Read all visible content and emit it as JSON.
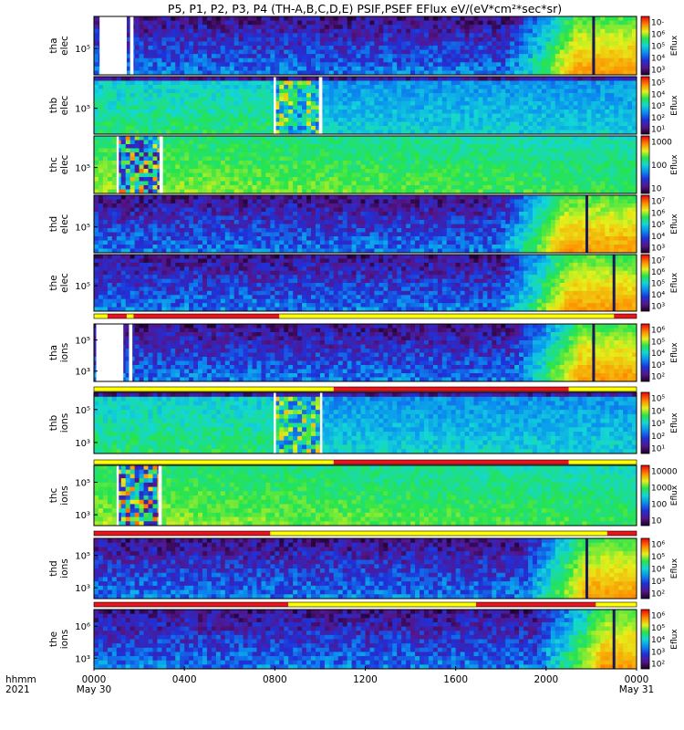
{
  "chart_data": {
    "type": "heatmap",
    "title": "P5, P1, P2, P3, P4 (TH-A,B,C,D,E) PSIF,PSEF EFlux eV/(eV*cm²*sec*sr)",
    "x_axis": {
      "row_label": "hhmm",
      "year_label": "2021",
      "ticks": [
        "0000",
        "0400",
        "0800",
        "1200",
        "1600",
        "2000",
        "0000"
      ],
      "tick_hours": [
        0,
        4,
        8,
        12,
        16,
        20,
        24
      ],
      "date_labels": [
        "May 30",
        "May 31"
      ],
      "range_hours": [
        0,
        24
      ]
    },
    "colorscale": "rainbow (black-purple-blue-cyan-green-yellow-orange-red)",
    "panels": [
      {
        "id": "tha-elec",
        "label": [
          "tha",
          "elec"
        ],
        "yticks": [
          "10⁵"
        ],
        "cbar_ticks": [
          "10·",
          "10⁶",
          "10⁵",
          "10⁴",
          "10³"
        ],
        "cbar_label": "Eflux",
        "data_gaps_hours": [
          [
            0.25,
            1.45
          ],
          [
            1.6,
            1.75
          ]
        ],
        "hot_region_hours": [
          18.3,
          24
        ],
        "spike_hours": [
          22.1
        ]
      },
      {
        "id": "thb-elec",
        "label": [
          "thb",
          "elec"
        ],
        "yticks": [
          "10⁵"
        ],
        "cbar_ticks": [
          "10⁵",
          "10⁴",
          "10³",
          "10²",
          "10¹"
        ],
        "cbar_label": "Eflux",
        "data_gaps_hours": [
          [
            7.95,
            8.05
          ],
          [
            9.95,
            10.1
          ]
        ],
        "hot_region_hours": null,
        "spike_hours": []
      },
      {
        "id": "thc-elec",
        "label": [
          "thc",
          "elec"
        ],
        "yticks": [
          "10⁵"
        ],
        "cbar_ticks": [
          "1000",
          "100",
          "10"
        ],
        "cbar_label": "Eflux",
        "data_gaps_hours": [
          [
            1.0,
            1.1
          ],
          [
            2.9,
            3.05
          ]
        ],
        "hot_region_hours": null,
        "spike_hours": []
      },
      {
        "id": "thd-elec",
        "label": [
          "thd",
          "elec"
        ],
        "yticks": [
          "10⁵"
        ],
        "cbar_ticks": [
          "10⁷",
          "10⁶",
          "10⁵",
          "10⁴",
          "10³"
        ],
        "cbar_label": "Eflux",
        "data_gaps_hours": [],
        "hot_region_hours": [
          17.8,
          24
        ],
        "spike_hours": [
          21.8
        ]
      },
      {
        "id": "the-elec",
        "label": [
          "the",
          "elec"
        ],
        "yticks": [
          "10⁵"
        ],
        "cbar_ticks": [
          "10⁷",
          "10⁶",
          "10⁵",
          "10⁴",
          "10³"
        ],
        "cbar_label": "Eflux",
        "data_gaps_hours": [],
        "hot_region_hours": [
          18.0,
          24
        ],
        "spike_hours": [
          23.0
        ]
      },
      {
        "id": "tha-ions",
        "label": [
          "tha",
          "ions"
        ],
        "yticks": [
          "10⁵",
          "10³"
        ],
        "cbar_ticks": [
          "10⁶",
          "10⁵",
          "10⁴",
          "10³",
          "10²"
        ],
        "cbar_label": "Eflux",
        "data_gaps_hours": [
          [
            0.1,
            1.3
          ],
          [
            1.55,
            1.7
          ]
        ],
        "hot_region_hours": [
          18.5,
          24
        ],
        "spike_hours": [
          22.1
        ]
      },
      {
        "id": "thb-ions",
        "label": [
          "thb",
          "ions"
        ],
        "yticks": [
          "10⁵",
          "10³"
        ],
        "cbar_ticks": [
          "10⁵",
          "10⁴",
          "10³",
          "10²",
          "10¹"
        ],
        "cbar_label": "Eflux",
        "data_gaps_hours": [
          [
            7.95,
            8.05
          ],
          [
            10.0,
            10.1
          ]
        ],
        "hot_region_hours": null,
        "spike_hours": []
      },
      {
        "id": "thc-ions",
        "label": [
          "thc",
          "ions"
        ],
        "yticks": [
          "10⁵",
          "10³"
        ],
        "cbar_ticks": [
          "10000",
          "1000",
          "100",
          "10"
        ],
        "cbar_label": "Eflux",
        "data_gaps_hours": [
          [
            1.0,
            1.1
          ],
          [
            2.85,
            3.0
          ]
        ],
        "hot_region_hours": null,
        "spike_hours": []
      },
      {
        "id": "thd-ions",
        "label": [
          "thd",
          "ions"
        ],
        "yticks": [
          "10⁵",
          "10³"
        ],
        "cbar_ticks": [
          "10⁶",
          "10⁵",
          "10⁴",
          "10³",
          "10²"
        ],
        "cbar_label": "Eflux",
        "data_gaps_hours": [],
        "hot_region_hours": [
          18.8,
          24
        ],
        "spike_hours": [
          21.8
        ]
      },
      {
        "id": "the-ions",
        "label": [
          "the",
          "ions"
        ],
        "yticks": [
          "10⁶",
          "10³"
        ],
        "cbar_ticks": [
          "10⁶",
          "10⁵",
          "10⁴",
          "10³",
          "10²"
        ],
        "cbar_label": "Eflux",
        "data_gaps_hours": [],
        "hot_region_hours": [
          19.5,
          24
        ],
        "spike_hours": [
          23.0
        ]
      }
    ],
    "mode_bars": [
      {
        "between": [
          "the-elec",
          "tha-ions"
        ],
        "segments": [
          [
            0,
            0.6,
            "yellow"
          ],
          [
            0.6,
            1.45,
            "red"
          ],
          [
            1.45,
            1.75,
            "yellow"
          ],
          [
            1.75,
            8.2,
            "red"
          ],
          [
            8.2,
            23.0,
            "yellow"
          ],
          [
            23.0,
            24,
            "red"
          ]
        ]
      },
      {
        "between": [
          "tha-ions",
          "thb-ions"
        ],
        "segments": [
          [
            0,
            10.6,
            "yellow"
          ],
          [
            10.6,
            21.0,
            "red"
          ],
          [
            21.0,
            24,
            "yellow"
          ]
        ]
      },
      {
        "between": [
          "thb-ions",
          "thc-ions"
        ],
        "segments": [
          [
            0,
            10.6,
            "yellow"
          ],
          [
            10.6,
            21.0,
            "red"
          ],
          [
            21.0,
            24,
            "yellow"
          ]
        ]
      },
      {
        "between": [
          "thc-ions",
          "thd-ions"
        ],
        "segments": [
          [
            0,
            7.8,
            "red"
          ],
          [
            7.8,
            22.7,
            "yellow"
          ],
          [
            22.7,
            24,
            "red"
          ]
        ]
      },
      {
        "between": [
          "thd-ions",
          "the-ions"
        ],
        "segments": [
          [
            0,
            8.6,
            "red"
          ],
          [
            8.6,
            16.9,
            "yellow"
          ],
          [
            16.9,
            22.2,
            "red"
          ],
          [
            22.2,
            24,
            "yellow"
          ]
        ]
      }
    ]
  }
}
